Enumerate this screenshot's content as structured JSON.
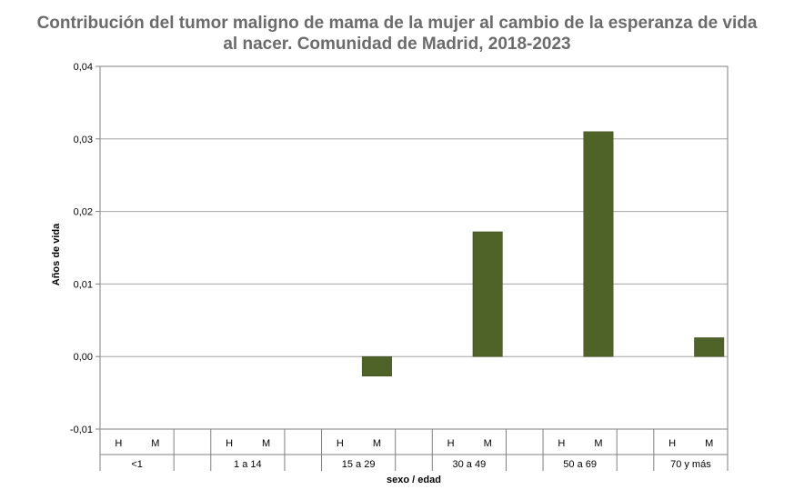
{
  "chart_data": {
    "type": "bar",
    "title_line1": "Contribución del tumor maligno de mama de la mujer al cambio de la esperanza de vida",
    "title_line2": "al nacer. Comunidad de Madrid, 2018-2023",
    "xlabel": "sexo / edad",
    "ylabel": "Años de vida",
    "ylim": [
      -0.01,
      0.04
    ],
    "yticks": [
      "-0,01",
      "0,00",
      "0,01",
      "0,02",
      "0,03",
      "0,04"
    ],
    "ytick_values": [
      -0.01,
      0.0,
      0.01,
      0.02,
      0.03,
      0.04
    ],
    "grid": true,
    "groups": [
      {
        "label": "<1",
        "bars": [
          {
            "sex": "H",
            "value": null
          },
          {
            "sex": "M",
            "value": null
          }
        ]
      },
      {
        "label": "1 a 14",
        "bars": [
          {
            "sex": "H",
            "value": null
          },
          {
            "sex": "M",
            "value": null
          }
        ]
      },
      {
        "label": "15 a 29",
        "bars": [
          {
            "sex": "H",
            "value": null
          },
          {
            "sex": "M",
            "value": -0.0027
          }
        ]
      },
      {
        "label": "30 a 49",
        "bars": [
          {
            "sex": "H",
            "value": null
          },
          {
            "sex": "M",
            "value": 0.0172
          }
        ]
      },
      {
        "label": "50 a 69",
        "bars": [
          {
            "sex": "H",
            "value": null
          },
          {
            "sex": "M",
            "value": 0.031
          }
        ]
      },
      {
        "label": "70 y más",
        "bars": [
          {
            "sex": "H",
            "value": null
          },
          {
            "sex": "M",
            "value": 0.0026
          }
        ]
      }
    ],
    "bar_color": "#4f6228"
  }
}
